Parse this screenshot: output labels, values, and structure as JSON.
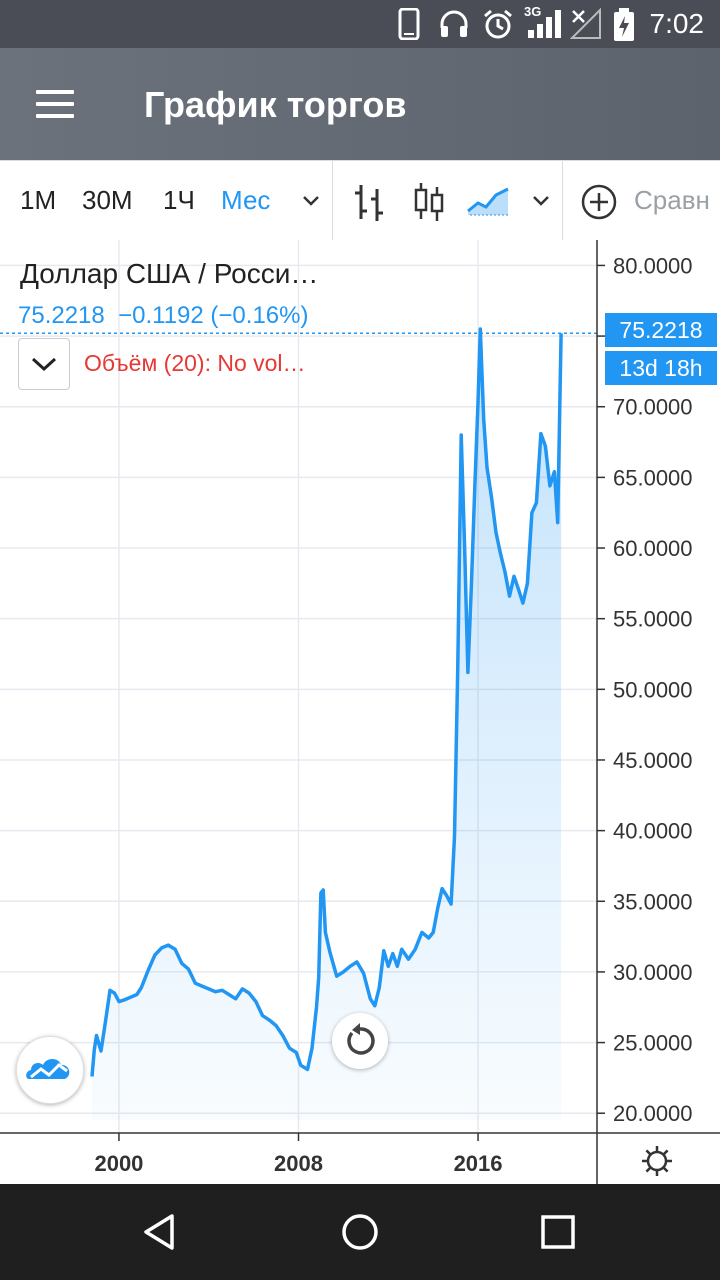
{
  "status_bar": {
    "time": "7:02",
    "network": "3G",
    "icons": [
      "phone-icon",
      "headphones-icon",
      "alarm-icon",
      "signal-icon",
      "no-signal-icon",
      "battery-icon"
    ]
  },
  "app_bar": {
    "title": "График торгов"
  },
  "toolbar": {
    "timeframes": [
      {
        "label": "1M",
        "active": false
      },
      {
        "label": "30M",
        "active": false
      },
      {
        "label": "1Ч",
        "active": false
      },
      {
        "label": "Мес",
        "active": true
      }
    ],
    "compare_label": "Сравн"
  },
  "legend": {
    "symbol": "Доллар США / Росси…",
    "last": "75.2218",
    "change": "−0.1192",
    "change_pct": "(−0.16%)",
    "volume_label": "Объём (20): No vol…"
  },
  "price_tag": {
    "price": "75.2218",
    "countdown": "13d 18h"
  },
  "colors": {
    "accent": "#2196f3",
    "volume": "#e53935"
  },
  "chart_data": {
    "type": "area",
    "title": "",
    "xlabel": "",
    "ylabel": "",
    "x_ticks": [
      "2000",
      "2008",
      "2016"
    ],
    "y_ticks": [
      "80.0000",
      "75.0000",
      "70.0000",
      "65.0000",
      "60.0000",
      "55.0000",
      "50.0000",
      "45.0000",
      "40.0000",
      "35.0000",
      "30.0000",
      "25.0000",
      "20.0000"
    ],
    "xlim": [
      1994.7,
      2021.3
    ],
    "ylim": [
      18.6,
      81.8
    ],
    "grid": true,
    "series": [
      {
        "x": [
          1998.8,
          1998.9,
          1999.0,
          1999.2,
          1999.4,
          1999.6,
          1999.8,
          2000.0,
          2000.2,
          2000.5,
          2000.8,
          2001.0,
          2001.3,
          2001.6,
          2001.9,
          2002.2,
          2002.5,
          2002.8,
          2003.1,
          2003.4,
          2003.7,
          2004.0,
          2004.3,
          2004.6,
          2004.9,
          2005.2,
          2005.5,
          2005.8,
          2006.1,
          2006.4,
          2006.7,
          2007.0,
          2007.3,
          2007.6,
          2007.9,
          2008.1,
          2008.4,
          2008.6,
          2008.8,
          2008.9,
          2009.0,
          2009.1,
          2009.2,
          2009.4,
          2009.7,
          2010.0,
          2010.3,
          2010.6,
          2010.9,
          2011.2,
          2011.4,
          2011.6,
          2011.8,
          2012.0,
          2012.2,
          2012.4,
          2012.6,
          2012.9,
          2013.2,
          2013.5,
          2013.8,
          2014.0,
          2014.2,
          2014.4,
          2014.6,
          2014.8,
          2014.95,
          2015.1,
          2015.25,
          2015.4,
          2015.55,
          2015.7,
          2015.85,
          2016.0,
          2016.1,
          2016.25,
          2016.4,
          2016.6,
          2016.8,
          2017.0,
          2017.2,
          2017.4,
          2017.6,
          2017.8,
          2018.0,
          2018.2,
          2018.4,
          2018.6,
          2018.8,
          2019.0,
          2019.2,
          2019.4,
          2019.55,
          2019.7
        ],
        "y": [
          22.6,
          24.5,
          25.5,
          24.4,
          26.5,
          28.7,
          28.5,
          27.9,
          28.0,
          28.2,
          28.4,
          28.9,
          30.1,
          31.2,
          31.7,
          31.9,
          31.6,
          30.6,
          30.2,
          29.2,
          29.0,
          28.8,
          28.6,
          28.7,
          28.4,
          28.1,
          28.8,
          28.5,
          27.9,
          26.9,
          26.6,
          26.2,
          25.5,
          24.6,
          24.3,
          23.4,
          23.1,
          24.6,
          27.5,
          29.6,
          35.6,
          35.8,
          32.8,
          31.4,
          29.7,
          30.0,
          30.4,
          30.7,
          29.9,
          28.1,
          27.6,
          28.9,
          31.5,
          30.4,
          31.3,
          30.4,
          31.6,
          30.9,
          31.6,
          32.8,
          32.4,
          32.8,
          34.5,
          35.9,
          35.4,
          34.8,
          39.6,
          51.7,
          68.0,
          60.1,
          51.2,
          57.2,
          64.1,
          70.3,
          75.5,
          69.1,
          65.7,
          63.6,
          61.1,
          59.6,
          58.3,
          56.6,
          58.0,
          57.1,
          56.1,
          57.5,
          62.5,
          63.2,
          68.1,
          67.2,
          64.4,
          65.4,
          61.8,
          75.2
        ]
      }
    ]
  }
}
